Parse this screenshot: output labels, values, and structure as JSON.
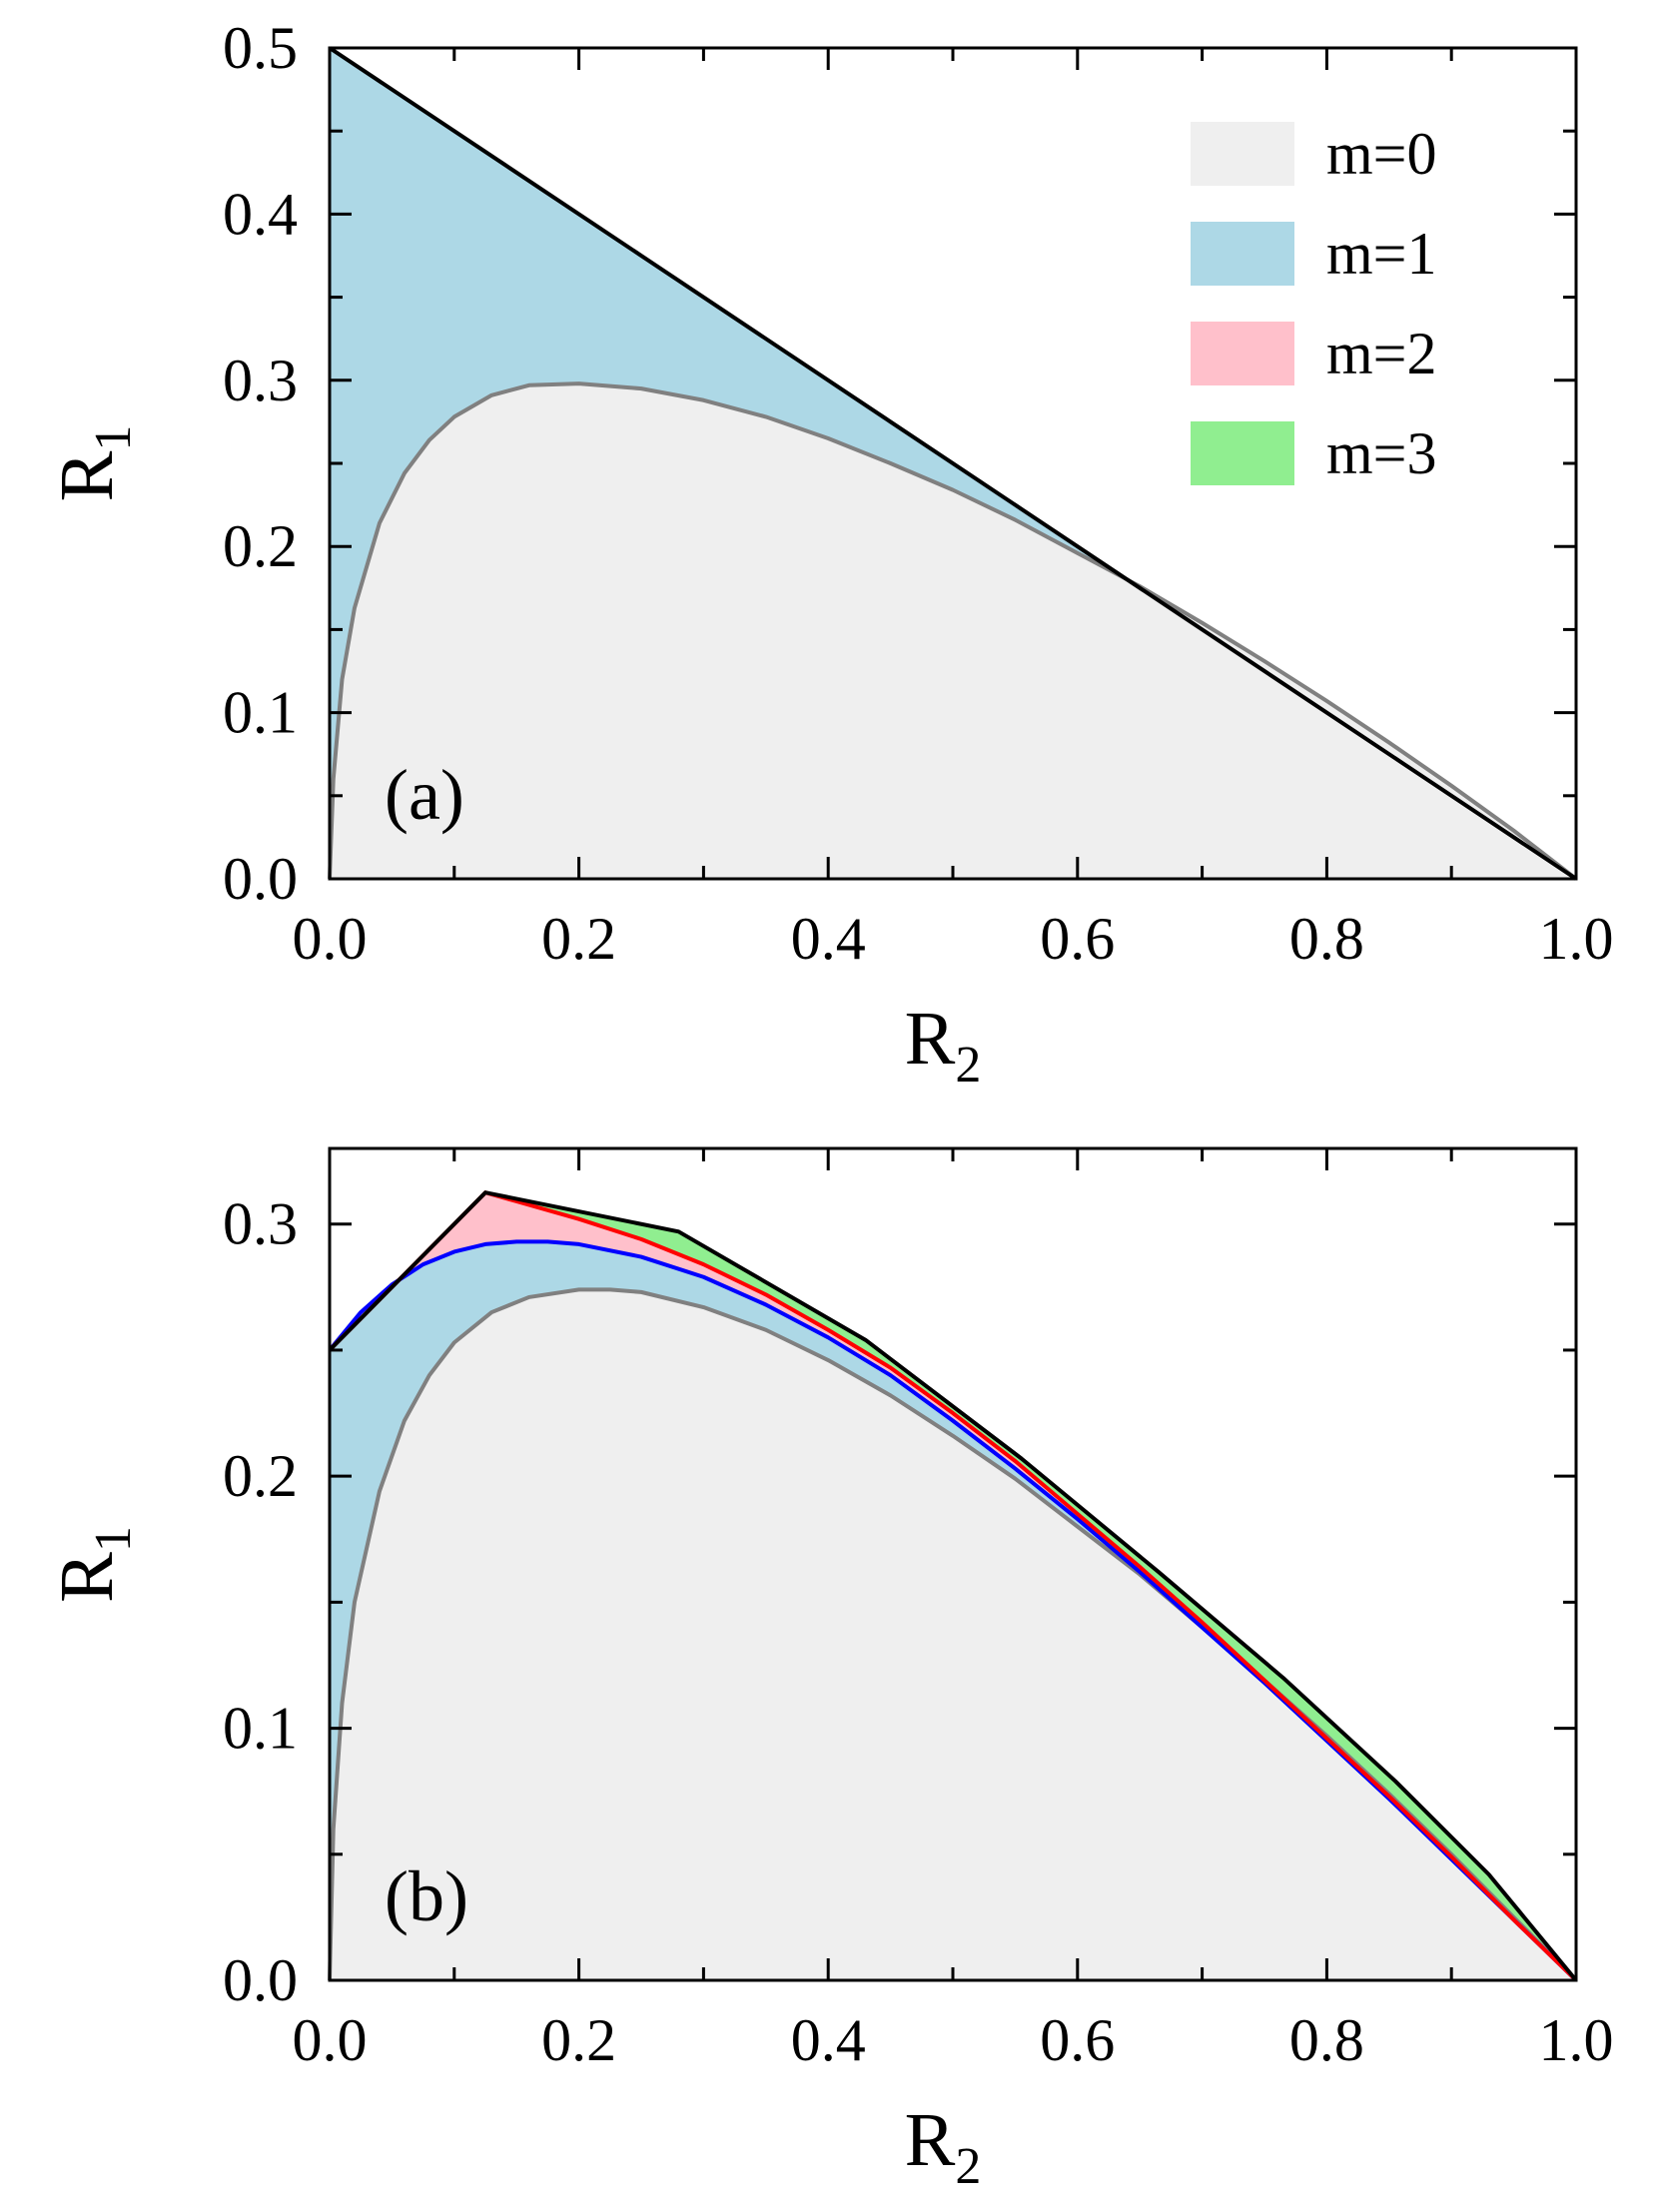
{
  "colors": {
    "m0": "#efefef",
    "m1": "#add8e6",
    "m2": "#ffc0cb",
    "m3": "#90ee90",
    "outer_boundary": "#000000",
    "m0_boundary": "#808080",
    "m1_boundary": "#0000ff",
    "m2_boundary": "#ff0000"
  },
  "chart_data": [
    {
      "type": "area",
      "panel_label": "(a)",
      "xlabel": "R",
      "xlabel_sub": "2",
      "ylabel": "R",
      "ylabel_sub": "1",
      "xlim": [
        0,
        1
      ],
      "ylim": [
        0,
        0.5
      ],
      "xticks": [
        "0.0",
        "0.2",
        "0.4",
        "0.6",
        "0.8",
        "1.0"
      ],
      "yticks": [
        "0.0",
        "0.1",
        "0.2",
        "0.3",
        "0.4",
        "0.5"
      ],
      "legend": {
        "position": "top-right",
        "entries": [
          {
            "label": "m=0",
            "color_key": "m0"
          },
          {
            "label": "m=1",
            "color_key": "m1"
          },
          {
            "label": "m=2",
            "color_key": "m2"
          },
          {
            "label": "m=3",
            "color_key": "m3"
          }
        ]
      },
      "series": [
        {
          "key": "m0",
          "x": [
            0,
            0.003,
            0.01,
            0.02,
            0.04,
            0.06,
            0.08,
            0.1,
            0.13,
            0.16,
            0.2,
            0.25,
            0.3,
            0.35,
            0.4,
            0.45,
            0.5,
            0.55,
            0.6,
            0.65,
            0.7,
            0.75,
            0.8,
            0.85,
            0.9,
            0.95,
            1.0
          ],
          "y": [
            0,
            0.06,
            0.12,
            0.163,
            0.214,
            0.244,
            0.264,
            0.278,
            0.291,
            0.297,
            0.298,
            0.295,
            0.288,
            0.278,
            0.265,
            0.25,
            0.234,
            0.216,
            0.196,
            0.176,
            0.154,
            0.131,
            0.107,
            0.082,
            0.056,
            0.029,
            0
          ]
        },
        {
          "key": "m1",
          "x": [
            0,
            1
          ],
          "y": [
            0.5,
            0
          ]
        }
      ]
    },
    {
      "type": "area",
      "panel_label": "(b)",
      "xlabel": "R",
      "xlabel_sub": "2",
      "ylabel": "R",
      "ylabel_sub": "1",
      "xlim": [
        0,
        1
      ],
      "ylim": [
        0,
        0.33
      ],
      "xticks": [
        "0.0",
        "0.2",
        "0.4",
        "0.6",
        "0.8",
        "1.0"
      ],
      "yticks": [
        "0.0",
        "0.1",
        "0.2",
        "0.3"
      ],
      "series": [
        {
          "key": "m0",
          "x": [
            0,
            0.003,
            0.01,
            0.02,
            0.04,
            0.06,
            0.08,
            0.1,
            0.13,
            0.16,
            0.2,
            0.225,
            0.25,
            0.3,
            0.35,
            0.4,
            0.45,
            0.5,
            0.55,
            0.6,
            0.65,
            0.7,
            0.75,
            0.8,
            0.85,
            0.9,
            0.95,
            1.0
          ],
          "y": [
            0,
            0.06,
            0.11,
            0.15,
            0.194,
            0.222,
            0.24,
            0.253,
            0.265,
            0.271,
            0.274,
            0.274,
            0.273,
            0.267,
            0.258,
            0.246,
            0.232,
            0.216,
            0.199,
            0.18,
            0.161,
            0.14,
            0.119,
            0.097,
            0.074,
            0.05,
            0.025,
            0
          ]
        },
        {
          "key": "m1",
          "x": [
            0,
            0.025,
            0.05,
            0.075,
            0.1,
            0.125,
            0.15,
            0.175,
            0.2,
            0.25,
            0.3,
            0.35,
            0.4,
            0.45,
            0.5,
            0.55,
            0.6,
            0.65,
            0.7,
            0.75,
            0.8,
            0.85,
            0.9,
            0.95,
            1.0
          ],
          "y": [
            0.25,
            0.265,
            0.276,
            0.284,
            0.289,
            0.292,
            0.293,
            0.293,
            0.292,
            0.287,
            0.279,
            0.268,
            0.255,
            0.24,
            0.222,
            0.203,
            0.183,
            0.162,
            0.14,
            0.118,
            0.095,
            0.072,
            0.048,
            0.024,
            0
          ]
        },
        {
          "key": "m2",
          "x": [
            0,
            0.125,
            0.15,
            0.2,
            0.25,
            0.3,
            0.35,
            0.4,
            0.45,
            0.5,
            0.55,
            0.6,
            0.65,
            0.7,
            0.75,
            0.8,
            0.85,
            0.9,
            0.95,
            1.0
          ],
          "y": [
            0.25,
            0.3125,
            0.309,
            0.302,
            0.294,
            0.284,
            0.272,
            0.258,
            0.243,
            0.225,
            0.206,
            0.185,
            0.164,
            0.142,
            0.119,
            0.096,
            0.073,
            0.049,
            0.024,
            0
          ]
        },
        {
          "key": "m3",
          "x": [
            0,
            0.125,
            0.28,
            0.43,
            0.555,
            0.665,
            0.765,
            0.855,
            0.93,
            1.0
          ],
          "y": [
            0.25,
            0.3125,
            0.297,
            0.254,
            0.207,
            0.162,
            0.12,
            0.079,
            0.042,
            0
          ]
        }
      ]
    }
  ]
}
